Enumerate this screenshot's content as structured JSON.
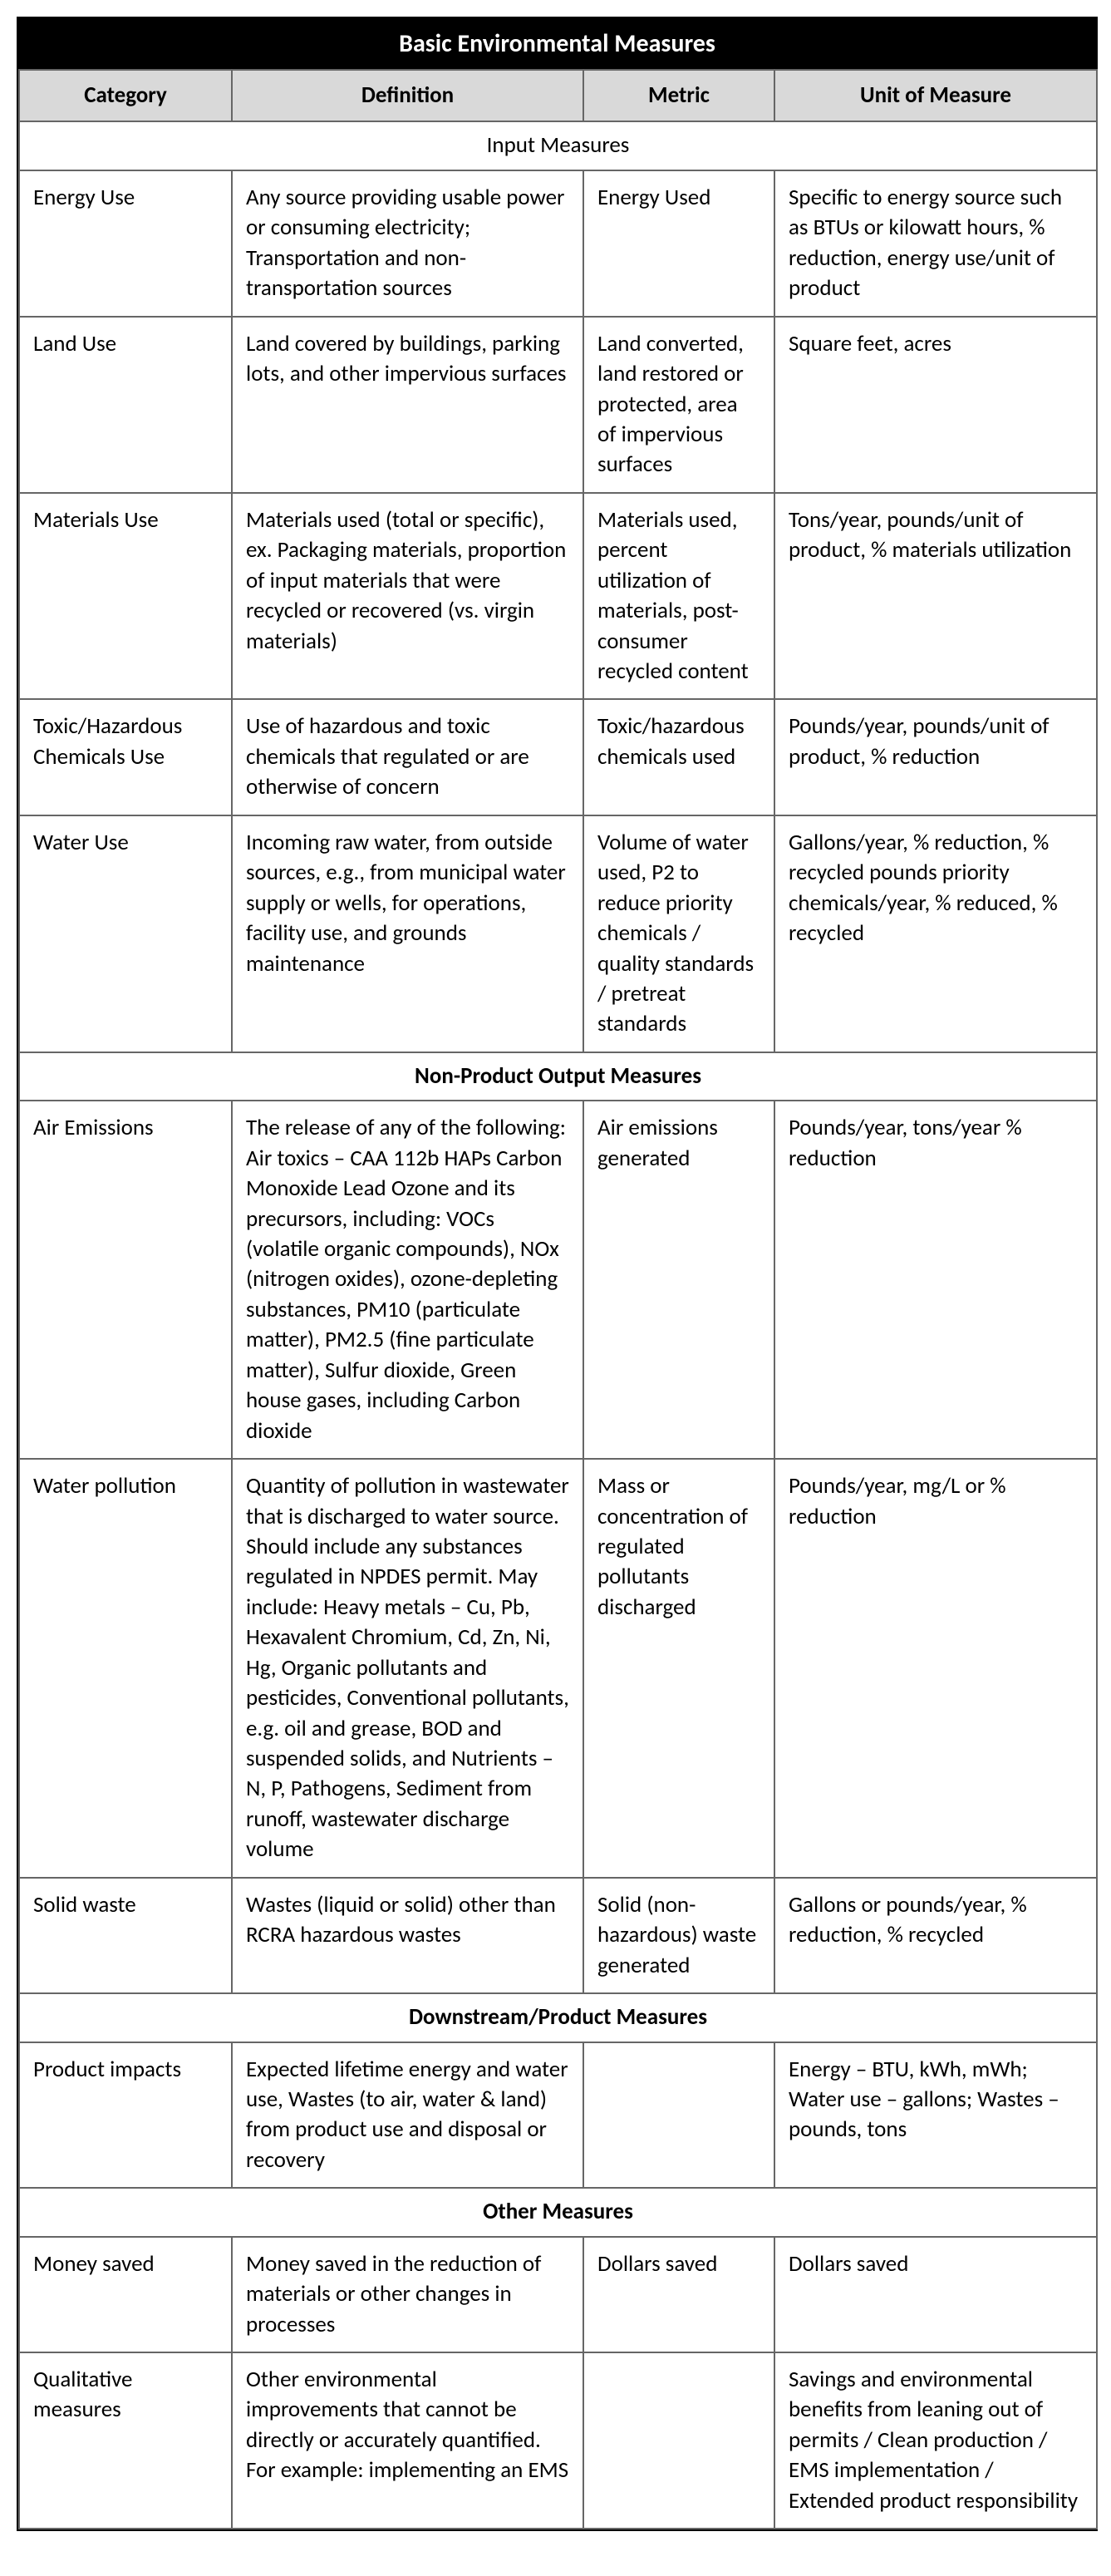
{
  "title": "Basic Environmental Measures",
  "headers": {
    "category": "Category",
    "definition": "Definition",
    "metric": "Metric",
    "unit": "Unit of Measure"
  },
  "sections": {
    "input": "Input Measures",
    "nonproduct": "Non-Product Output Measures",
    "downstream": "Downstream/Product Measures",
    "other": "Other Measures"
  },
  "rows": {
    "energy": {
      "category": "Energy Use",
      "definition": "Any source providing usable power or consuming electricity; Transportation and non-transportation sources",
      "metric": "Energy Used",
      "unit": "Specific to energy source such as BTUs or kilowatt hours, % reduction, energy use/unit of product"
    },
    "land": {
      "category": "Land Use",
      "definition": "Land covered by buildings, parking lots, and other impervious surfaces",
      "metric": "Land converted, land restored or protected, area of impervious surfaces",
      "unit": "Square feet, acres"
    },
    "materials": {
      "category": "Materials Use",
      "definition": "Materials used (total or specific), ex. Packaging materials, proportion of input materials that were recycled or recovered (vs. virgin materials)",
      "metric": "Materials used, percent utilization of materials, post-consumer recycled content",
      "unit": "Tons/year, pounds/unit of product, % materials utilization"
    },
    "toxic": {
      "category": "Toxic/Hazardous Chemicals Use",
      "definition": "Use of hazardous and toxic chemicals that regulated or are otherwise of concern",
      "metric": "Toxic/hazardous chemicals used",
      "unit": "Pounds/year, pounds/unit of product, % reduction"
    },
    "water": {
      "category": "Water Use",
      "definition": "Incoming raw water, from outside sources, e.g., from municipal water supply or wells, for operations, facility use, and grounds maintenance",
      "metric": "Volume of water used, P2 to reduce priority chemicals / quality standards / pretreat standards",
      "unit": "Gallons/year, % reduction, % recycled pounds priority chemicals/year, % reduced, % recycled"
    },
    "air": {
      "category": "Air Emissions",
      "definition": "The release of any of the following: Air toxics – CAA 112b HAPs Carbon Monoxide Lead Ozone and its precursors, including: VOCs (volatile organic compounds), NOx (nitrogen oxides), ozone-depleting substances, PM10 (particulate matter), PM2.5 (fine particulate matter), Sulfur dioxide, Green house gases, including Carbon dioxide",
      "metric": "Air emissions generated",
      "unit": "Pounds/year, tons/year % reduction"
    },
    "waterpoll": {
      "category": "Water pollution",
      "definition": "Quantity of pollution in wastewater that is discharged to water source. Should include any substances regulated in NPDES permit. May include: Heavy metals – Cu, Pb, Hexavalent Chromium, Cd, Zn, Ni, Hg, Organic pollutants and pesticides, Conventional pollutants, e.g. oil and grease, BOD and suspended solids, and Nutrients – N, P, Pathogens, Sediment from runoff, wastewater discharge volume",
      "metric": "Mass or concentration of regulated pollutants discharged",
      "unit": "Pounds/year, mg/L or % reduction"
    },
    "solid": {
      "category": "Solid waste",
      "definition": "Wastes (liquid or solid) other than RCRA hazardous wastes",
      "metric": "Solid (non-hazardous) waste generated",
      "unit": "Gallons or pounds/year, % reduction, % recycled"
    },
    "product": {
      "category": "Product impacts",
      "definition": "Expected lifetime energy and water use, Wastes (to air, water & land) from product use and disposal or recovery",
      "metric": "",
      "unit": "Energy – BTU, kWh, mWh; Water use – gallons; Wastes – pounds, tons"
    },
    "money": {
      "category": "Money saved",
      "definition": "Money saved in the reduction of materials or other changes in processes",
      "metric": "Dollars saved",
      "unit": "Dollars saved"
    },
    "qual": {
      "category": "Qualitative measures",
      "definition": "Other environmental improvements that cannot be directly or accurately quantified. For example: implementing an EMS",
      "metric": "",
      "unit": "Savings and environmental benefits from leaning out of permits / Clean production / EMS implementation / Extended product responsibility"
    }
  }
}
